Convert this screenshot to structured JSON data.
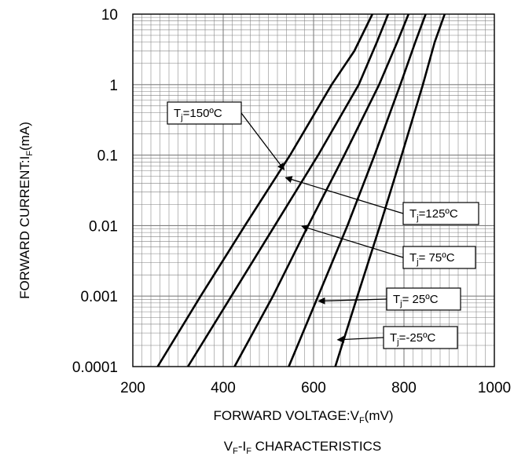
{
  "chart_data": {
    "type": "line",
    "title": "",
    "xlabel": {
      "main": "FORWARD VOLTAGE:V",
      "sub": "F",
      "tail": "(mV)"
    },
    "ylabel": {
      "main": "FORWARD CURRENT:I",
      "sub": "F",
      "tail": "(mA)"
    },
    "caption": {
      "p1": "V",
      "s1": "F",
      "p2": "-I",
      "s2": "F",
      "p3": " CHARACTERISTICS"
    },
    "xlim": [
      200,
      1000
    ],
    "ylim": [
      0.0001,
      10
    ],
    "yscale": "log",
    "grid": true,
    "x_ticks": [
      "200",
      "400",
      "600",
      "800",
      "1000"
    ],
    "y_ticks": [
      "0.0001",
      "0.001",
      "0.01",
      "0.1",
      "1",
      "10"
    ],
    "series": [
      {
        "points": [
          [
            255,
            0.0001
          ],
          [
            350,
            0.001
          ],
          [
            448,
            0.01
          ],
          [
            548,
            0.1
          ],
          [
            640,
            1
          ],
          [
            690,
            3
          ],
          [
            730,
            10
          ]
        ],
        "label": {
          "pre": "T",
          "sub": "j",
          "post": "=150ºC"
        }
      },
      {
        "points": [
          [
            322,
            0.0001
          ],
          [
            418,
            0.001
          ],
          [
            514,
            0.01
          ],
          [
            610,
            0.1
          ],
          [
            700,
            1
          ],
          [
            740,
            4
          ],
          [
            765,
            10
          ]
        ],
        "label": {
          "pre": "T",
          "sub": "j",
          "post": "=125ºC"
        }
      },
      {
        "points": [
          [
            425,
            0.0001
          ],
          [
            510,
            0.001
          ],
          [
            588,
            0.01
          ],
          [
            668,
            0.1
          ],
          [
            745,
            1
          ],
          [
            785,
            4
          ],
          [
            810,
            10
          ]
        ],
        "label": {
          "pre": "T",
          "sub": "j",
          "post": "= 75ºC"
        }
      },
      {
        "points": [
          [
            545,
            0.0001
          ],
          [
            610,
            0.001
          ],
          [
            675,
            0.01
          ],
          [
            735,
            0.1
          ],
          [
            792,
            1
          ],
          [
            825,
            4
          ],
          [
            848,
            10
          ]
        ],
        "label": {
          "pre": "T",
          "sub": "j",
          "post": "= 25ºC"
        }
      },
      {
        "points": [
          [
            648,
            0.0001
          ],
          [
            697,
            0.001
          ],
          [
            747,
            0.01
          ],
          [
            795,
            0.1
          ],
          [
            842,
            1
          ],
          [
            868,
            4
          ],
          [
            890,
            10
          ]
        ],
        "label": {
          "pre": "T",
          "sub": "j",
          "post": "=-25ºC"
        }
      }
    ],
    "annotations": [
      {
        "series": 0,
        "target": [
          535,
          0.062
        ]
      },
      {
        "series": 1,
        "target": [
          538,
          0.048
        ]
      },
      {
        "series": 2,
        "target": [
          574,
          0.0098
        ]
      },
      {
        "series": 3,
        "target": [
          611,
          0.00085
        ]
      },
      {
        "series": 4,
        "target": [
          653,
          0.00024
        ]
      }
    ],
    "colors": {
      "line": "#000000",
      "grid": "#808080",
      "frame": "#000000"
    }
  }
}
